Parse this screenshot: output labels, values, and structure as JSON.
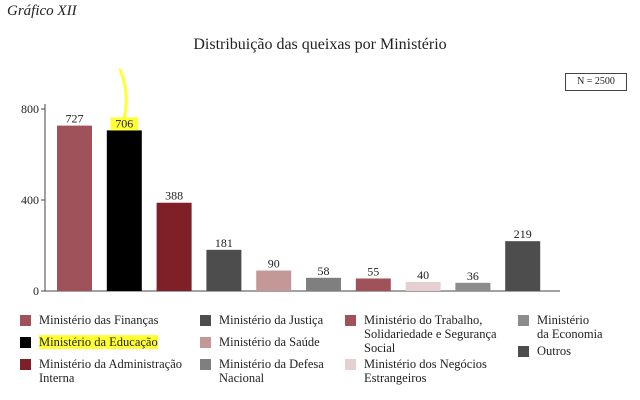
{
  "section_label": "Gráfico XII",
  "n_label": "N = 2500",
  "chart_data": {
    "type": "bar",
    "title": "Distribuição das queixas por Ministério",
    "ylim": [
      0,
      800
    ],
    "yticks": [
      "0",
      "400",
      "800"
    ],
    "grid": false,
    "legend_position": "bottom",
    "categories": [
      "Ministério das Finanças",
      "Ministério da Educação",
      "Ministério da Administração Interna",
      "Ministério da Justiça",
      "Ministério da Saúde",
      "Ministério da Defesa Nacional",
      "Ministério do Trabalho, Solidariedade e Segurança Social",
      "Ministério dos Negócios Estrangeiros",
      "Ministério da Economia",
      "Outros"
    ],
    "values": [
      727,
      706,
      388,
      181,
      90,
      58,
      55,
      40,
      36,
      219
    ],
    "value_labels": [
      "727",
      "706",
      "388",
      "181",
      "90",
      "58",
      "55",
      "40",
      "36",
      "219"
    ],
    "colors": [
      "#a0525a",
      "#000000",
      "#7f1f27",
      "#4d4d4d",
      "#c59898",
      "#7f7f7f",
      "#a0525a",
      "#e6cfd0",
      "#8c8c8c",
      "#4d4d4d"
    ],
    "highlight_color": "#ffff33"
  },
  "legend": [
    {
      "text": "Ministério das Finanças",
      "color": "#a0525a"
    },
    {
      "text": "Ministério da Educação",
      "color": "#000000",
      "highlight": true
    },
    {
      "text": "Ministério da Administração\nInterna",
      "color": "#7f1f27"
    },
    {
      "text": "Ministério da Justiça",
      "color": "#4d4d4d"
    },
    {
      "text": "Ministério da Saúde",
      "color": "#c59898"
    },
    {
      "text": "Ministério da Defesa\nNacional",
      "color": "#7f7f7f"
    },
    {
      "text": "Ministério do  Trabalho,\nSolidariedade e Segurança\nSocial",
      "color": "#a0525a"
    },
    {
      "text": "Ministério dos Negócios\nEstrangeiros",
      "color": "#e6cfd0"
    },
    {
      "text": "Ministério\nda Economia",
      "color": "#8c8c8c"
    },
    {
      "text": "Outros",
      "color": "#4d4d4d"
    }
  ]
}
